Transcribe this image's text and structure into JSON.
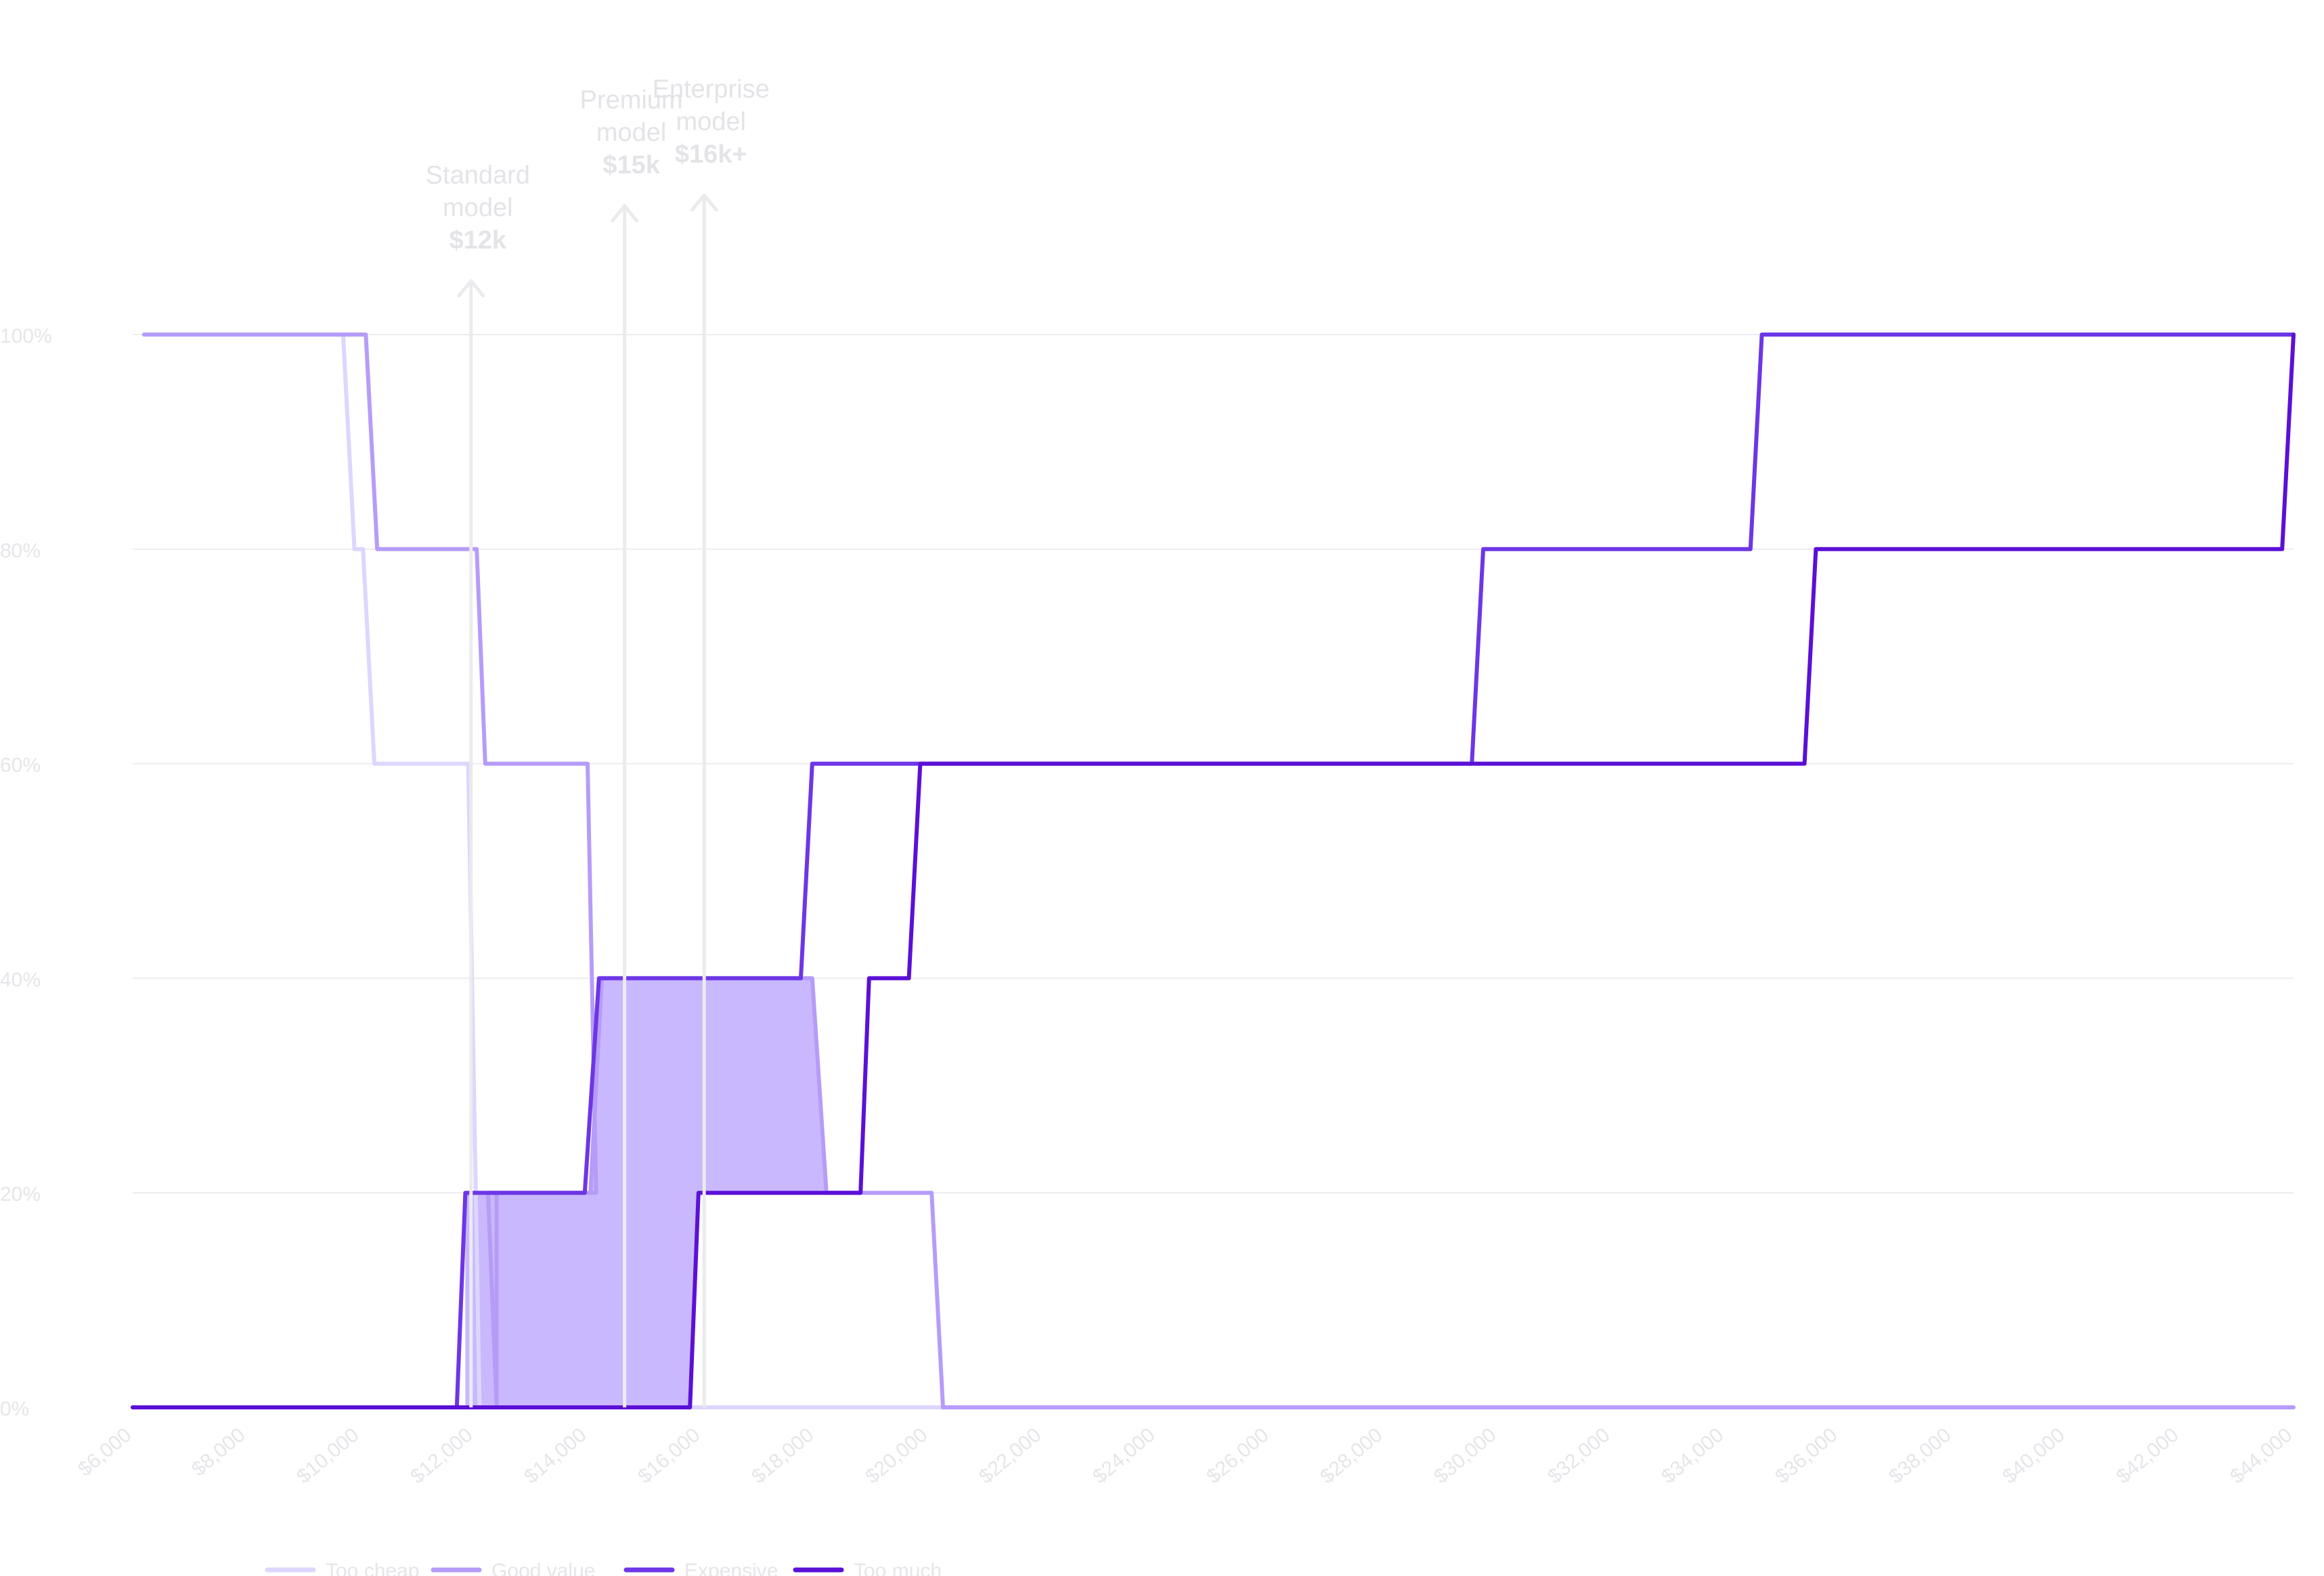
{
  "chart_data": {
    "type": "line",
    "title": "",
    "xlabel": "",
    "ylabel": "",
    "xlim": [
      6000,
      44000
    ],
    "ylim": [
      0,
      100
    ],
    "x_ticks": [
      6000,
      8000,
      10000,
      12000,
      14000,
      16000,
      18000,
      20000,
      22000,
      24000,
      26000,
      28000,
      30000,
      32000,
      34000,
      36000,
      38000,
      40000,
      42000,
      44000
    ],
    "x_tick_labels": [
      "$6,000",
      "$8,000",
      "$10,000",
      "$12,000",
      "$14,000",
      "$16,000",
      "$18,000",
      "$20,000",
      "$22,000",
      "$24,000",
      "$26,000",
      "$28,000",
      "$30,000",
      "$32,000",
      "$34,000",
      "$36,000",
      "$38,000",
      "$40,000",
      "$42,000",
      "$44,000"
    ],
    "y_ticks": [
      0,
      20,
      40,
      60,
      80,
      100
    ],
    "y_tick_labels": [
      "0%",
      "20%",
      "40%",
      "60%",
      "80%",
      "100%"
    ],
    "grid": true,
    "legend_position": "bottom-left",
    "series": [
      {
        "name": "Too cheap",
        "color": "#ddd6fe",
        "points": [
          [
            6200,
            100
          ],
          [
            9700,
            100
          ],
          [
            9900,
            80
          ],
          [
            10050,
            80
          ],
          [
            10250,
            60
          ],
          [
            11900,
            60
          ],
          [
            12100,
            0
          ],
          [
            44000,
            0
          ]
        ]
      },
      {
        "name": "Good value",
        "color": "#b69cf8",
        "points": [
          [
            6200,
            100
          ],
          [
            10100,
            100
          ],
          [
            10300,
            80
          ],
          [
            12050,
            80
          ],
          [
            12200,
            60
          ],
          [
            14000,
            60
          ],
          [
            14150,
            20
          ],
          [
            12250,
            20
          ],
          [
            12400,
            0
          ],
          [
            12400,
            20
          ],
          [
            14050,
            20
          ],
          [
            14250,
            40
          ],
          [
            17950,
            40
          ],
          [
            18200,
            20
          ],
          [
            20050,
            20
          ],
          [
            20250,
            0
          ],
          [
            44000,
            0
          ]
        ]
      },
      {
        "name": "Expensive",
        "color": "#6d36e6",
        "points": [
          [
            6000,
            0
          ],
          [
            11700,
            0
          ],
          [
            11850,
            20
          ],
          [
            13950,
            20
          ],
          [
            14200,
            40
          ],
          [
            17750,
            40
          ],
          [
            17950,
            60
          ],
          [
            29550,
            60
          ],
          [
            29750,
            80
          ],
          [
            34450,
            80
          ],
          [
            34650,
            100
          ],
          [
            44000,
            100
          ]
        ]
      },
      {
        "name": "Too much",
        "color": "#5b10d6",
        "points": [
          [
            6000,
            0
          ],
          [
            15800,
            0
          ],
          [
            15950,
            20
          ],
          [
            18800,
            20
          ],
          [
            18950,
            40
          ],
          [
            19650,
            40
          ],
          [
            19850,
            60
          ],
          [
            35400,
            60
          ],
          [
            35600,
            80
          ],
          [
            43800,
            80
          ],
          [
            44000,
            100
          ]
        ]
      }
    ],
    "shaded_regions": [
      {
        "color": "#c9b8fd",
        "points": [
          [
            11850,
            20
          ],
          [
            12400,
            20
          ],
          [
            14050,
            20
          ],
          [
            14250,
            40
          ],
          [
            17950,
            40
          ],
          [
            18200,
            20
          ],
          [
            15950,
            20
          ],
          [
            15800,
            0
          ],
          [
            12400,
            0
          ],
          [
            11850,
            0
          ]
        ]
      }
    ],
    "annotations": [
      {
        "x": 11950,
        "top_y": 105,
        "lines": [
          "Standard",
          "model"
        ],
        "bold": "$12k"
      },
      {
        "x": 14650,
        "top_y": 112,
        "lines": [
          "Premium",
          "model"
        ],
        "bold": "$15k"
      },
      {
        "x": 16050,
        "top_y": 113,
        "lines": [
          "Enterprise",
          "model"
        ],
        "bold": "$16k+"
      }
    ]
  }
}
